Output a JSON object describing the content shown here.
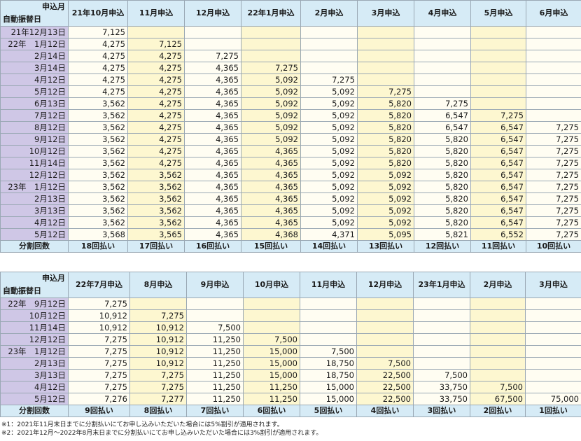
{
  "table1": {
    "corner_top": "申込月",
    "corner_bottom": "自動振替日",
    "columns": [
      "21年10月申込",
      "11月申込",
      "12月申込",
      "22年1月申込",
      "2月申込",
      "3月申込",
      "4月申込",
      "5月申込",
      "6月申込"
    ],
    "rows": [
      {
        "label": "21年12月13日",
        "values": [
          "7,125",
          "",
          "",
          "",
          "",
          "",
          "",
          "",
          ""
        ]
      },
      {
        "label": "22年　1月12日",
        "values": [
          "4,275",
          "7,125",
          "",
          "",
          "",
          "",
          "",
          "",
          ""
        ]
      },
      {
        "label": "2月14日",
        "values": [
          "4,275",
          "4,275",
          "7,275",
          "",
          "",
          "",
          "",
          "",
          ""
        ]
      },
      {
        "label": "3月14日",
        "values": [
          "4,275",
          "4,275",
          "4,365",
          "7,275",
          "",
          "",
          "",
          "",
          ""
        ]
      },
      {
        "label": "4月12日",
        "values": [
          "4,275",
          "4,275",
          "4,365",
          "5,092",
          "7,275",
          "",
          "",
          "",
          ""
        ]
      },
      {
        "label": "5月12日",
        "values": [
          "4,275",
          "4,275",
          "4,365",
          "5,092",
          "5,092",
          "7,275",
          "",
          "",
          ""
        ]
      },
      {
        "label": "6月13日",
        "values": [
          "3,562",
          "4,275",
          "4,365",
          "5,092",
          "5,092",
          "5,820",
          "7,275",
          "",
          ""
        ]
      },
      {
        "label": "7月12日",
        "values": [
          "3,562",
          "4,275",
          "4,365",
          "5,092",
          "5,092",
          "5,820",
          "6,547",
          "7,275",
          ""
        ]
      },
      {
        "label": "8月12日",
        "values": [
          "3,562",
          "4,275",
          "4,365",
          "5,092",
          "5,092",
          "5,820",
          "6,547",
          "6,547",
          "7,275"
        ]
      },
      {
        "label": "9月12日",
        "values": [
          "3,562",
          "4,275",
          "4,365",
          "5,092",
          "5,092",
          "5,820",
          "5,820",
          "6,547",
          "7,275"
        ]
      },
      {
        "label": "10月12日",
        "values": [
          "3,562",
          "4,275",
          "4,365",
          "4,365",
          "5,092",
          "5,820",
          "5,820",
          "6,547",
          "7,275"
        ]
      },
      {
        "label": "11月14日",
        "values": [
          "3,562",
          "4,275",
          "4,365",
          "4,365",
          "5,092",
          "5,820",
          "5,820",
          "6,547",
          "7,275"
        ]
      },
      {
        "label": "12月12日",
        "values": [
          "3,562",
          "3,562",
          "4,365",
          "4,365",
          "5,092",
          "5,092",
          "5,820",
          "6,547",
          "7,275"
        ]
      },
      {
        "label": "23年　1月12日",
        "values": [
          "3,562",
          "3,562",
          "4,365",
          "4,365",
          "5,092",
          "5,092",
          "5,820",
          "6,547",
          "7,275"
        ]
      },
      {
        "label": "2月13日",
        "values": [
          "3,562",
          "3,562",
          "4,365",
          "4,365",
          "5,092",
          "5,092",
          "5,820",
          "6,547",
          "7,275"
        ]
      },
      {
        "label": "3月13日",
        "values": [
          "3,562",
          "3,562",
          "4,365",
          "4,365",
          "5,092",
          "5,092",
          "5,820",
          "6,547",
          "7,275"
        ]
      },
      {
        "label": "4月12日",
        "values": [
          "3,562",
          "3,562",
          "4,365",
          "4,365",
          "5,092",
          "5,092",
          "5,820",
          "6,547",
          "7,275"
        ]
      },
      {
        "label": "5月12日",
        "values": [
          "3,568",
          "3,565",
          "4,365",
          "4,368",
          "4,371",
          "5,095",
          "5,821",
          "6,552",
          "7,275"
        ]
      }
    ],
    "footer_label": "分割回数",
    "footer": [
      "18回払い",
      "17回払い",
      "16回払い",
      "15回払い",
      "14回払い",
      "13回払い",
      "12回払い",
      "11回払い",
      "10回払い"
    ]
  },
  "table2": {
    "corner_top": "申込月",
    "corner_bottom": "自動振替日",
    "columns": [
      "22年7月申込",
      "8月申込",
      "9月申込",
      "10月申込",
      "11月申込",
      "12月申込",
      "23年1月申込",
      "2月申込",
      "3月申込"
    ],
    "rows": [
      {
        "label": "22年　9月12日",
        "values": [
          "7,275",
          "",
          "",
          "",
          "",
          "",
          "",
          "",
          ""
        ]
      },
      {
        "label": "10月12日",
        "values": [
          "10,912",
          "7,275",
          "",
          "",
          "",
          "",
          "",
          "",
          ""
        ]
      },
      {
        "label": "11月14日",
        "values": [
          "10,912",
          "10,912",
          "7,500",
          "",
          "",
          "",
          "",
          "",
          ""
        ]
      },
      {
        "label": "12月12日",
        "values": [
          "7,275",
          "10,912",
          "11,250",
          "7,500",
          "",
          "",
          "",
          "",
          ""
        ]
      },
      {
        "label": "23年　1月12日",
        "values": [
          "7,275",
          "10,912",
          "11,250",
          "15,000",
          "7,500",
          "",
          "",
          "",
          ""
        ]
      },
      {
        "label": "2月13日",
        "values": [
          "7,275",
          "10,912",
          "11,250",
          "15,000",
          "18,750",
          "7,500",
          "",
          "",
          ""
        ]
      },
      {
        "label": "3月13日",
        "values": [
          "7,275",
          "7,275",
          "11,250",
          "15,000",
          "18,750",
          "22,500",
          "7,500",
          "",
          ""
        ]
      },
      {
        "label": "4月12日",
        "values": [
          "7,275",
          "7,275",
          "11,250",
          "11,250",
          "15,000",
          "22,500",
          "33,750",
          "7,500",
          ""
        ]
      },
      {
        "label": "5月12日",
        "values": [
          "7,276",
          "7,277",
          "11,250",
          "11,250",
          "15,000",
          "22,500",
          "33,750",
          "67,500",
          "75,000"
        ]
      }
    ],
    "footer_label": "分割回数",
    "footer": [
      "9回払い",
      "8回払い",
      "7回払い",
      "6回払い",
      "5回払い",
      "4回払い",
      "3回払い",
      "2回払い",
      "1回払い"
    ]
  },
  "notes": [
    "※1：2021年11月末日までに分割払いにてお申し込みいただいた場合には5%割引が適用されます。",
    "※2：2021年12月～2022年8月末日までに分割払いにてお申し込みいただいた場合には3%割引が適用されます。"
  ]
}
